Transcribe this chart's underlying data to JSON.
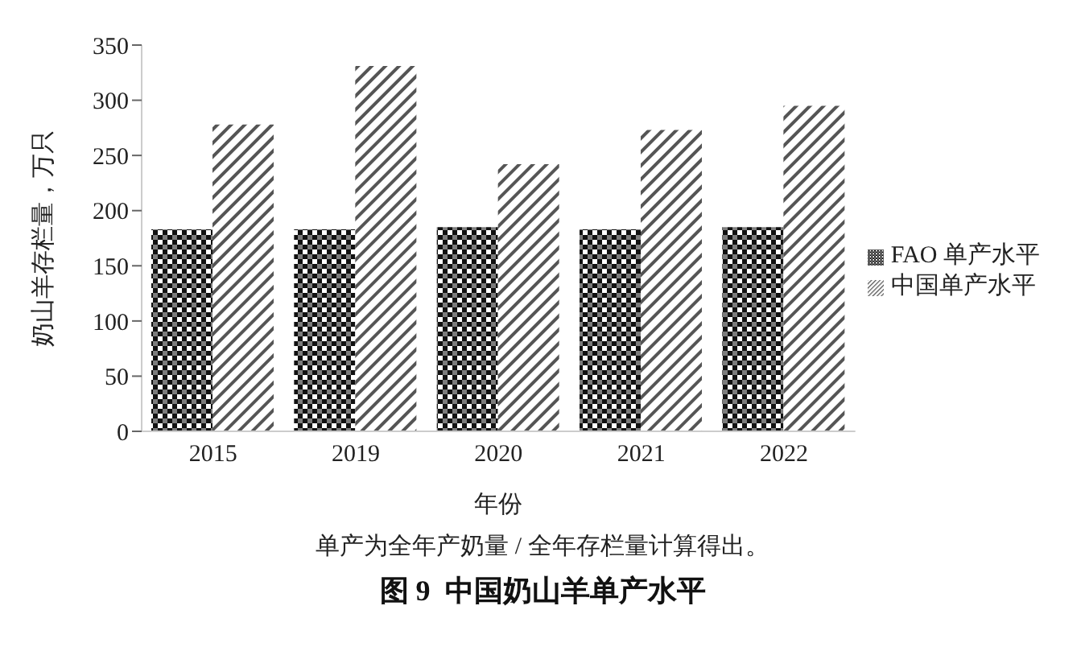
{
  "chart_data": {
    "type": "bar",
    "title": "图 9  中国奶山羊单产水平",
    "xlabel": "年份",
    "ylabel": "奶山羊存栏量，万只",
    "annotations": [
      "单产为全年产奶量 / 全年存栏量计算得出。"
    ],
    "categories": [
      "2015",
      "2019",
      "2020",
      "2021",
      "2022"
    ],
    "series": [
      {
        "name": "FAO 单产水平",
        "color": "#111111",
        "values": [
          183,
          183,
          185,
          183,
          185
        ]
      },
      {
        "name": "中国单产水平",
        "color": "#555555",
        "values": [
          278,
          331,
          242,
          273,
          295
        ]
      }
    ],
    "ylim": [
      0,
      350
    ],
    "yticks": [
      0,
      50,
      100,
      150,
      200,
      250,
      300,
      350
    ],
    "grid": false,
    "legend": "right"
  }
}
